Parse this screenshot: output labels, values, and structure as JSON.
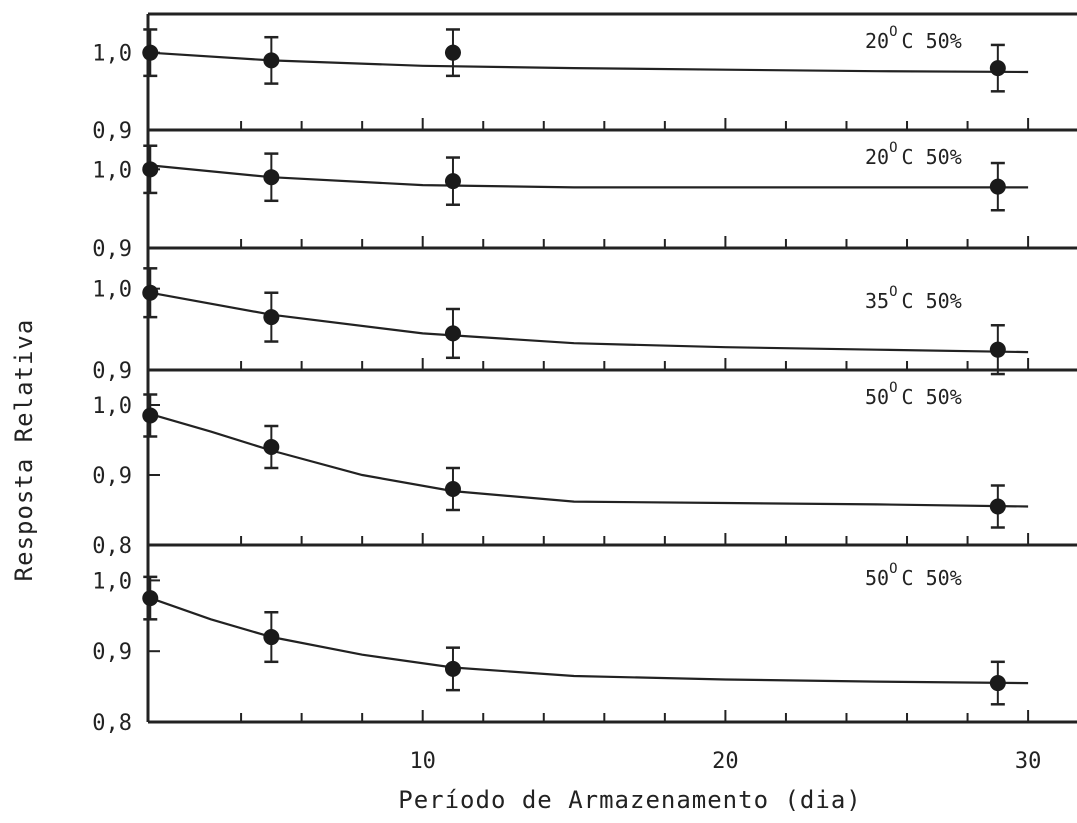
{
  "xlabel": "Período de Armazenamento (dia)",
  "ylabel": "Resposta Relativa",
  "x_tick_labels": [
    "10",
    "20",
    "30"
  ],
  "chart_data": [
    {
      "type": "scatter",
      "panel_label": {
        "temp": "20",
        "degree": "O",
        "unit": "C 50%"
      },
      "ylim": [
        0.9,
        1.05
      ],
      "y_tick_labels": [
        "1,0",
        "0,9"
      ],
      "y_ticks": [
        1.0,
        0.9
      ],
      "points": [
        {
          "x": 1,
          "y": 1.0,
          "err": 0.03
        },
        {
          "x": 5,
          "y": 0.99,
          "err": 0.03
        },
        {
          "x": 11,
          "y": 1.0,
          "err": 0.03
        },
        {
          "x": 29,
          "y": 0.98,
          "err": 0.03
        }
      ],
      "fit": [
        [
          1,
          1.0
        ],
        [
          5,
          0.99
        ],
        [
          10,
          0.983
        ],
        [
          15,
          0.98
        ],
        [
          20,
          0.978
        ],
        [
          25,
          0.976
        ],
        [
          30,
          0.975
        ]
      ]
    },
    {
      "type": "scatter",
      "panel_label": {
        "temp": "20",
        "degree": "O",
        "unit": "C 50%"
      },
      "ylim": [
        0.9,
        1.05
      ],
      "y_tick_labels": [
        "1,0",
        "0,9"
      ],
      "y_ticks": [
        1.0,
        0.9
      ],
      "points": [
        {
          "x": 1,
          "y": 1.0,
          "err": 0.03
        },
        {
          "x": 5,
          "y": 0.99,
          "err": 0.03
        },
        {
          "x": 11,
          "y": 0.985,
          "err": 0.03
        },
        {
          "x": 29,
          "y": 0.978,
          "err": 0.03
        }
      ],
      "fit": [
        [
          1,
          1.005
        ],
        [
          5,
          0.99
        ],
        [
          10,
          0.98
        ],
        [
          15,
          0.977
        ],
        [
          20,
          0.977
        ],
        [
          25,
          0.977
        ],
        [
          30,
          0.977
        ]
      ]
    },
    {
      "type": "scatter",
      "panel_label": {
        "temp": "35",
        "degree": "O",
        "unit": "C 50%"
      },
      "ylim": [
        0.9,
        1.05
      ],
      "y_tick_labels": [
        "1,0",
        "0,9"
      ],
      "y_ticks": [
        1.0,
        0.9
      ],
      "points": [
        {
          "x": 1,
          "y": 0.995,
          "err": 0.03
        },
        {
          "x": 5,
          "y": 0.965,
          "err": 0.03
        },
        {
          "x": 11,
          "y": 0.945,
          "err": 0.03
        },
        {
          "x": 29,
          "y": 0.925,
          "err": 0.03
        }
      ],
      "fit": [
        [
          1,
          0.995
        ],
        [
          5,
          0.968
        ],
        [
          10,
          0.945
        ],
        [
          15,
          0.933
        ],
        [
          20,
          0.928
        ],
        [
          25,
          0.925
        ],
        [
          30,
          0.922
        ]
      ]
    },
    {
      "type": "scatter",
      "panel_label": {
        "temp": "50",
        "degree": "O",
        "unit": "C 50%"
      },
      "ylim": [
        0.8,
        1.05
      ],
      "y_tick_labels": [
        "1,0",
        "0,9",
        "0,8"
      ],
      "y_ticks": [
        1.0,
        0.9,
        0.8
      ],
      "points": [
        {
          "x": 1,
          "y": 0.985,
          "err": 0.03
        },
        {
          "x": 5,
          "y": 0.94,
          "err": 0.03
        },
        {
          "x": 11,
          "y": 0.88,
          "err": 0.03
        },
        {
          "x": 29,
          "y": 0.855,
          "err": 0.03
        }
      ],
      "fit": [
        [
          1,
          0.987
        ],
        [
          3,
          0.962
        ],
        [
          5,
          0.935
        ],
        [
          8,
          0.9
        ],
        [
          11,
          0.877
        ],
        [
          15,
          0.862
        ],
        [
          20,
          0.86
        ],
        [
          25,
          0.858
        ],
        [
          30,
          0.855
        ]
      ]
    },
    {
      "type": "scatter",
      "panel_label": {
        "temp": "50",
        "degree": "O",
        "unit": "C 50%"
      },
      "ylim": [
        0.8,
        1.05
      ],
      "y_tick_labels": [
        "1,0",
        "0,9",
        "0,8"
      ],
      "y_ticks": [
        1.0,
        0.9,
        0.8
      ],
      "points": [
        {
          "x": 1,
          "y": 0.975,
          "err": 0.03
        },
        {
          "x": 5,
          "y": 0.92,
          "err": 0.035
        },
        {
          "x": 11,
          "y": 0.875,
          "err": 0.03
        },
        {
          "x": 29,
          "y": 0.855,
          "err": 0.03
        }
      ],
      "fit": [
        [
          1,
          0.975
        ],
        [
          3,
          0.945
        ],
        [
          5,
          0.92
        ],
        [
          8,
          0.895
        ],
        [
          11,
          0.877
        ],
        [
          15,
          0.865
        ],
        [
          20,
          0.86
        ],
        [
          25,
          0.857
        ],
        [
          30,
          0.855
        ]
      ]
    }
  ]
}
